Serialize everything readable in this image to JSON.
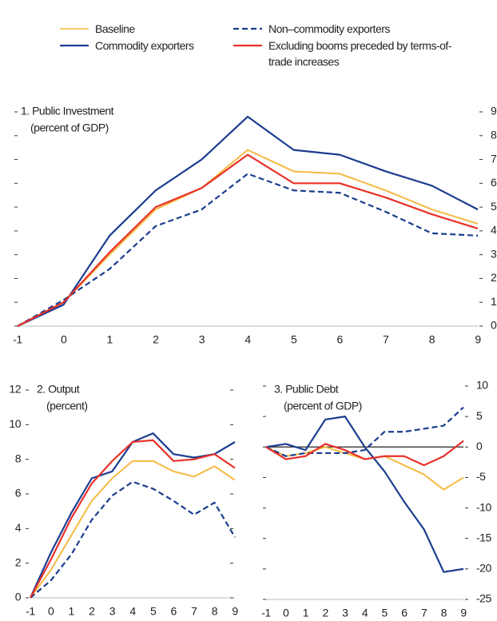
{
  "chart_data": [
    {
      "type": "line",
      "title": "1. Public Investment",
      "subtitle": "(percent of GDP)",
      "x": [
        -1,
        0,
        1,
        2,
        3,
        4,
        5,
        6,
        7,
        8,
        9
      ],
      "xlim": [
        -1,
        9
      ],
      "xticks": [
        -1,
        0,
        1,
        2,
        3,
        4,
        5,
        6,
        7,
        8,
        9
      ],
      "ylim": [
        0,
        9
      ],
      "yticks": [
        0,
        1,
        2,
        3,
        4,
        5,
        6,
        7,
        8,
        9
      ],
      "series": [
        {
          "name": "Baseline",
          "color": "#f5b942",
          "values": [
            0,
            1.0,
            3.0,
            4.9,
            5.8,
            7.4,
            6.5,
            6.4,
            5.7,
            4.9,
            4.3
          ]
        },
        {
          "name": "Commodity exporters",
          "color": "#1b3d8f",
          "values": [
            0,
            0.9,
            3.8,
            5.7,
            7.0,
            8.8,
            7.4,
            7.2,
            6.5,
            5.9,
            4.9
          ]
        },
        {
          "name": "Non–commodity exporters",
          "color": "#1b3d8f",
          "dashed": true,
          "values": [
            0,
            1.1,
            2.4,
            4.2,
            4.9,
            6.4,
            5.7,
            5.6,
            4.8,
            3.9,
            3.8
          ]
        },
        {
          "name": "Excluding booms preceded by terms-of-trade increases",
          "color": "#e8312a",
          "values": [
            0,
            1.0,
            3.1,
            5.0,
            5.8,
            7.2,
            6.0,
            6.0,
            5.4,
            4.7,
            4.1
          ]
        }
      ]
    },
    {
      "type": "line",
      "title": "2. Output",
      "subtitle": "(percent)",
      "x": [
        -1,
        0,
        1,
        2,
        3,
        4,
        5,
        6,
        7,
        8,
        9
      ],
      "xlim": [
        -1,
        9
      ],
      "xticks": [
        -1,
        0,
        1,
        2,
        3,
        4,
        5,
        6,
        7,
        8,
        9
      ],
      "ylim": [
        0,
        12
      ],
      "yticks": [
        0,
        2,
        4,
        6,
        8,
        10,
        12
      ],
      "series": [
        {
          "color": "#f5b942",
          "values": [
            0,
            1.6,
            3.6,
            5.6,
            6.9,
            7.9,
            7.9,
            7.3,
            7.0,
            7.6,
            6.8
          ]
        },
        {
          "color": "#1b3d8f",
          "values": [
            0,
            2.6,
            4.9,
            6.9,
            7.3,
            9.0,
            9.5,
            8.3,
            8.1,
            8.3,
            9.0
          ]
        },
        {
          "color": "#1b3d8f",
          "dashed": true,
          "values": [
            0,
            1.0,
            2.5,
            4.5,
            5.9,
            6.7,
            6.3,
            5.6,
            4.8,
            5.5,
            3.5
          ]
        },
        {
          "color": "#e8312a",
          "values": [
            0,
            2.2,
            4.6,
            6.6,
            7.9,
            9.0,
            9.1,
            7.9,
            8.0,
            8.3,
            7.5
          ]
        }
      ]
    },
    {
      "type": "line",
      "title": "3. Public Debt",
      "subtitle": "(percent of GDP)",
      "x": [
        -1,
        0,
        1,
        2,
        3,
        4,
        5,
        6,
        7,
        8,
        9
      ],
      "xlim": [
        -1,
        9
      ],
      "xticks": [
        -1,
        0,
        1,
        2,
        3,
        4,
        5,
        6,
        7,
        8,
        9
      ],
      "ylim": [
        -25,
        10
      ],
      "yticks": [
        -25,
        -20,
        -15,
        -10,
        -5,
        0,
        5,
        10
      ],
      "zero_line": true,
      "series": [
        {
          "color": "#f5b942",
          "values": [
            0,
            -1.5,
            -1.0,
            0.0,
            -1.0,
            -2.0,
            -1.5,
            -3.0,
            -4.5,
            -7.0,
            -5.0
          ]
        },
        {
          "color": "#1b3d8f",
          "values": [
            0,
            0.5,
            -0.5,
            4.5,
            5.0,
            0.0,
            -4.0,
            -9.0,
            -13.5,
            -20.5,
            -20.0
          ]
        },
        {
          "color": "#1b3d8f",
          "dashed": true,
          "values": [
            0,
            -1.5,
            -1.0,
            -1.0,
            -1.0,
            -0.5,
            2.5,
            2.5,
            3.0,
            3.5,
            6.5
          ]
        },
        {
          "color": "#e8312a",
          "values": [
            0,
            -2.0,
            -1.5,
            0.5,
            -0.5,
            -2.0,
            -1.5,
            -1.5,
            -3.0,
            -1.5,
            1.0
          ]
        }
      ]
    }
  ]
}
